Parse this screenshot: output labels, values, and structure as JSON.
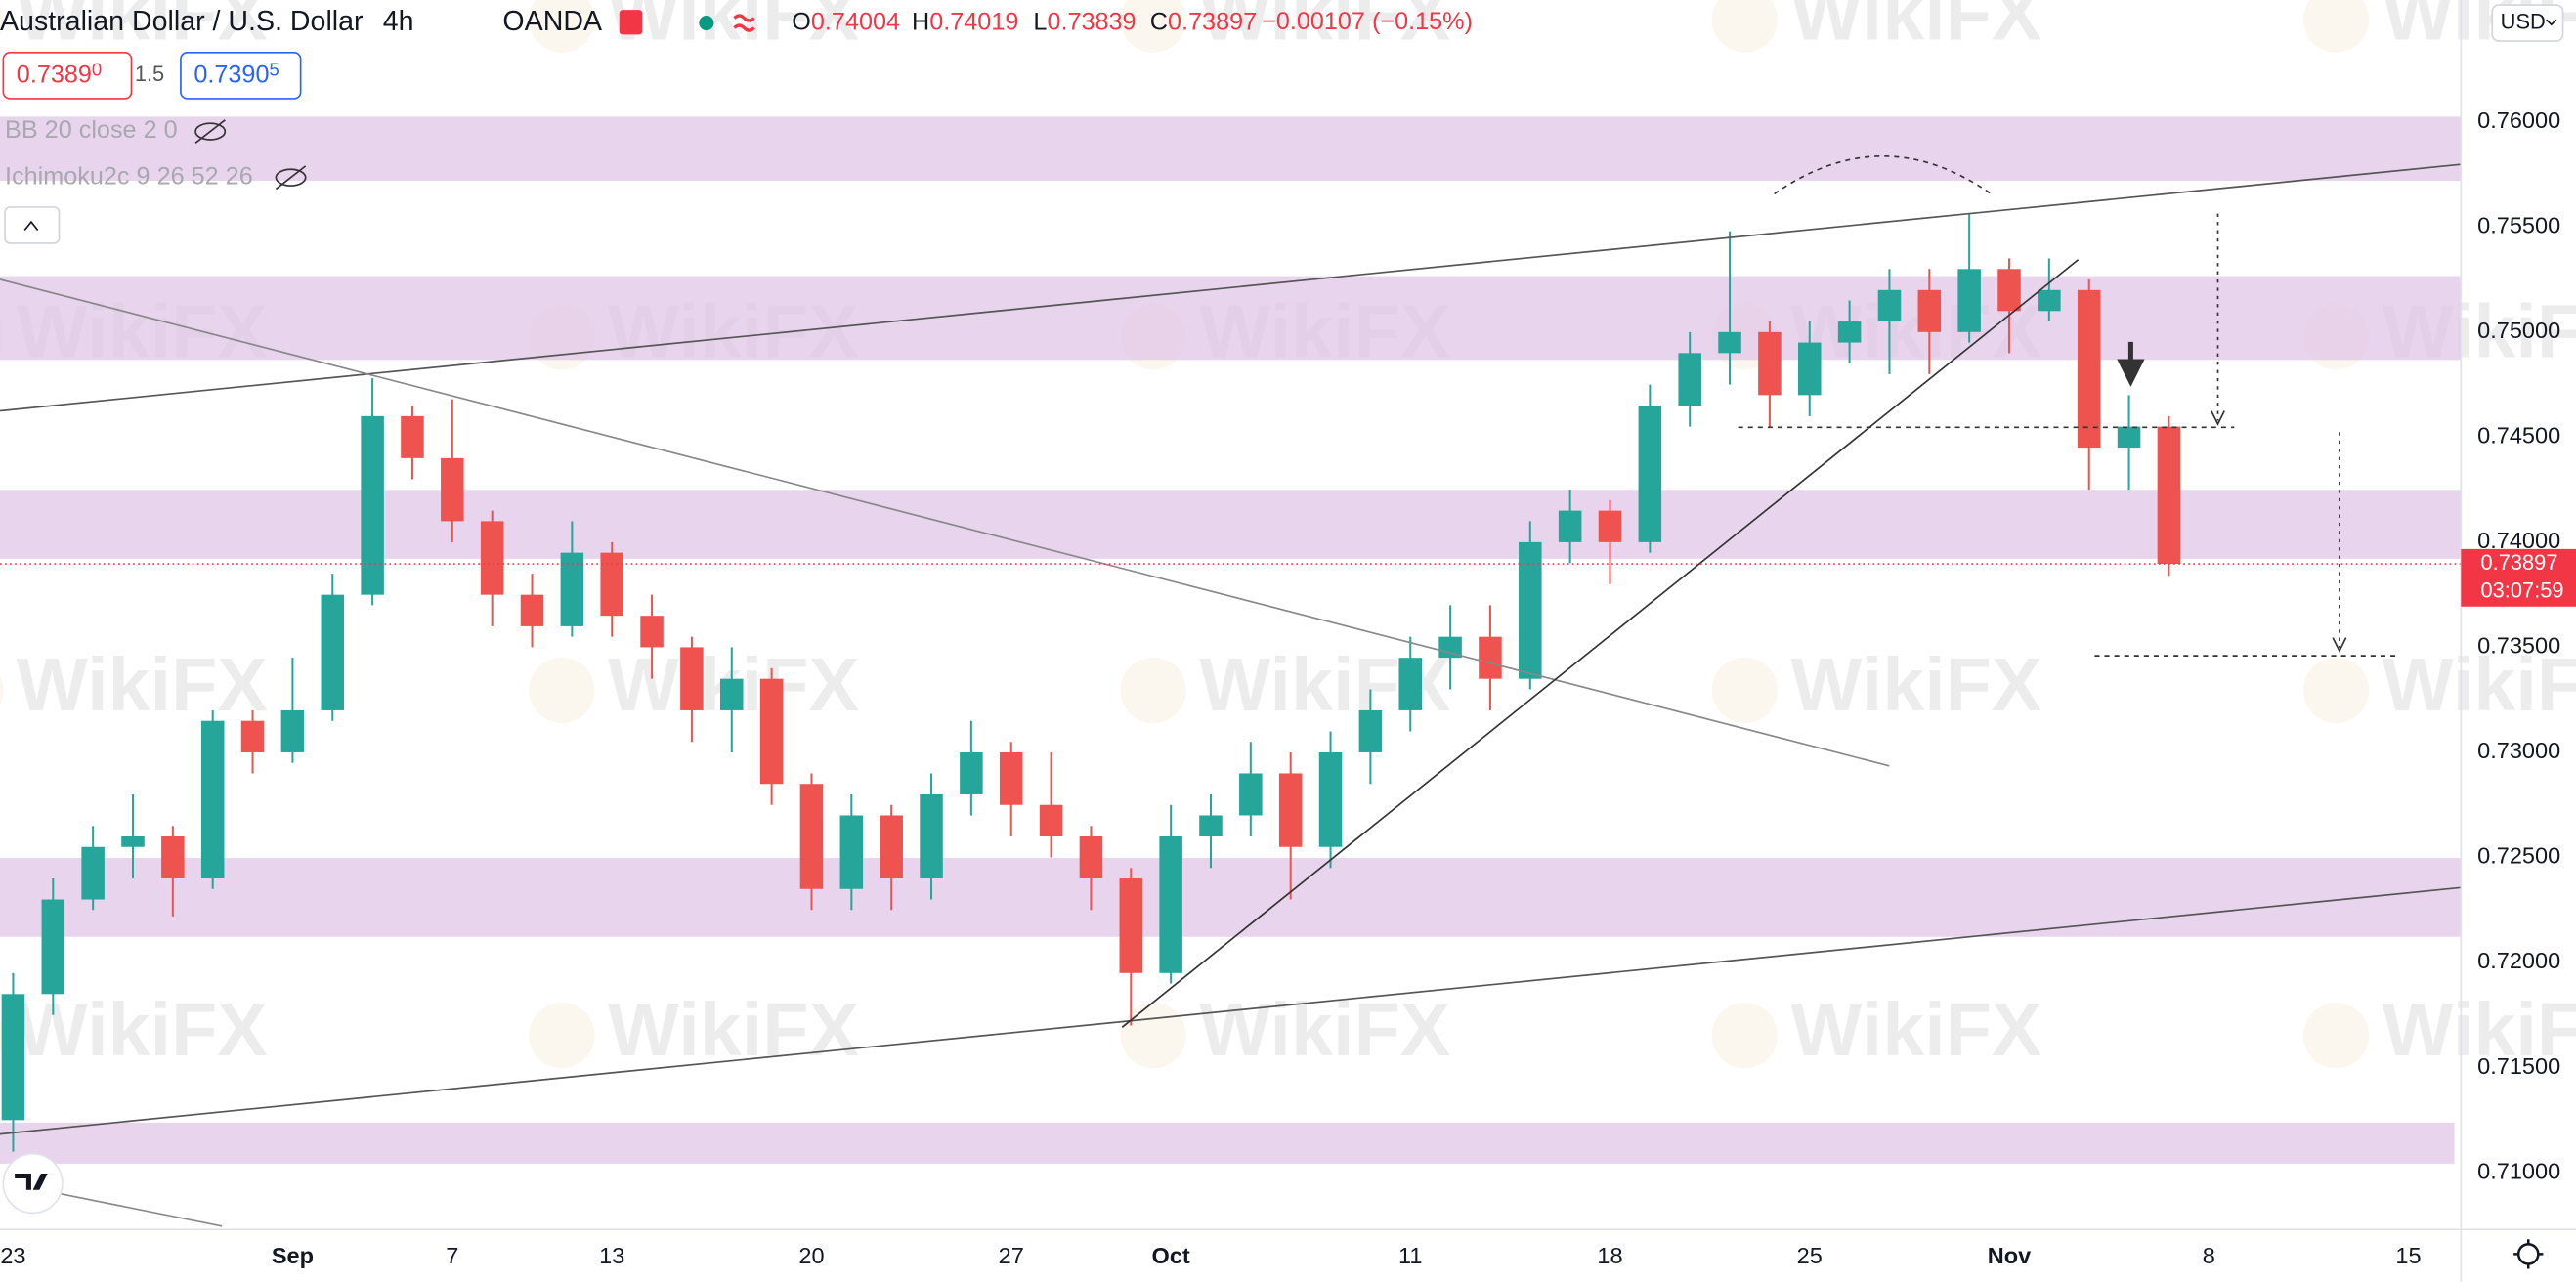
{
  "chart_data": {
    "type": "candlestick",
    "title": "Australian Dollar / U.S. Dollar",
    "interval": "4h",
    "exchange": "OANDA",
    "ohlc_header": [
      {
        "label": "O",
        "value": "0.74004"
      },
      {
        "label": "H",
        "value": "0.74019"
      },
      {
        "label": "L",
        "value": "0.73839"
      },
      {
        "label": "C",
        "value": "0.73897"
      }
    ],
    "change": "−0.00107 (−0.15%)",
    "sell_price": {
      "main": "0.7389",
      "pip": "0"
    },
    "spread": "1.5",
    "buy_price": {
      "main": "0.7390",
      "pip": "5"
    },
    "indicators": [
      "BB 20 close 2 0",
      "Ichimoku2c 9 26 52 26"
    ],
    "currency": "USD",
    "watermark": "WikiFX",
    "last_price": 0.73897,
    "countdown": "03:07:59",
    "categories": [
      "23",
      null,
      null,
      null,
      null,
      null,
      null,
      "Sep",
      null,
      null,
      null,
      "7",
      null,
      null,
      null,
      "13",
      null,
      null,
      null,
      null,
      "20",
      null,
      null,
      null,
      null,
      "27",
      null,
      null,
      null,
      "Oct",
      null,
      null,
      null,
      null,
      null,
      "11",
      null,
      null,
      null,
      null,
      "18",
      null,
      null,
      null,
      null,
      "25",
      null,
      null,
      null,
      null,
      "Nov",
      null,
      null,
      null,
      null,
      "8",
      null,
      null,
      null,
      null,
      "15"
    ],
    "open": [
      0.7125,
      0.7185,
      0.723,
      0.7255,
      0.726,
      0.724,
      0.7315,
      0.73,
      0.732,
      0.7375,
      0.746,
      0.744,
      0.741,
      0.7375,
      0.736,
      0.7395,
      0.7365,
      0.735,
      0.732,
      0.7335,
      0.7285,
      0.7235,
      0.727,
      0.724,
      0.728,
      0.73,
      0.7275,
      0.726,
      0.724,
      0.7195,
      0.726,
      0.727,
      0.729,
      0.7255,
      0.73,
      0.732,
      0.7345,
      0.7355,
      0.7335,
      0.74,
      0.7415,
      0.74,
      0.7465,
      0.749,
      0.75,
      0.747,
      0.7495,
      0.7505,
      0.752,
      0.75,
      0.753,
      0.751,
      0.752,
      0.7445,
      0.7455,
      null,
      null,
      null,
      null,
      null,
      null
    ],
    "high": [
      0.7195,
      0.724,
      0.7265,
      0.728,
      0.7265,
      0.732,
      0.732,
      0.7345,
      0.7385,
      0.7478,
      0.7465,
      0.7468,
      0.7415,
      0.7385,
      0.741,
      0.74,
      0.7375,
      0.7355,
      0.735,
      0.734,
      0.729,
      0.728,
      0.7275,
      0.729,
      0.7315,
      0.7305,
      0.73,
      0.7265,
      0.7245,
      0.7275,
      0.728,
      0.7305,
      0.73,
      0.731,
      0.733,
      0.7355,
      0.737,
      0.737,
      0.741,
      0.7425,
      0.742,
      0.7475,
      0.75,
      0.7548,
      0.7505,
      0.7505,
      0.7515,
      0.753,
      0.753,
      0.7556,
      0.7535,
      0.7535,
      0.7525,
      0.747,
      0.746,
      null,
      null,
      null,
      null,
      null,
      null
    ],
    "low": [
      0.711,
      0.7175,
      0.7225,
      0.724,
      0.7222,
      0.7235,
      0.729,
      0.7295,
      0.7315,
      0.737,
      0.743,
      0.74,
      0.736,
      0.735,
      0.7355,
      0.7355,
      0.7335,
      0.7305,
      0.73,
      0.7275,
      0.7225,
      0.7225,
      0.7225,
      0.723,
      0.727,
      0.726,
      0.725,
      0.7225,
      0.717,
      0.719,
      0.7245,
      0.726,
      0.723,
      0.7245,
      0.7285,
      0.731,
      0.733,
      0.732,
      0.733,
      0.739,
      0.738,
      0.7395,
      0.7455,
      0.7475,
      0.7455,
      0.746,
      0.7485,
      0.748,
      0.748,
      0.7495,
      0.749,
      0.7505,
      0.7425,
      0.7425,
      0.7384,
      null,
      null,
      null,
      null,
      null,
      null
    ],
    "close": [
      0.7185,
      0.723,
      0.7255,
      0.726,
      0.724,
      0.7315,
      0.73,
      0.732,
      0.7375,
      0.746,
      0.744,
      0.741,
      0.7375,
      0.736,
      0.7395,
      0.7365,
      0.735,
      0.732,
      0.7335,
      0.7285,
      0.7235,
      0.727,
      0.724,
      0.728,
      0.73,
      0.7275,
      0.726,
      0.724,
      0.7195,
      0.726,
      0.727,
      0.729,
      0.7255,
      0.73,
      0.732,
      0.7345,
      0.7355,
      0.7335,
      0.74,
      0.7415,
      0.74,
      0.7465,
      0.749,
      0.75,
      0.747,
      0.7495,
      0.7505,
      0.752,
      0.75,
      0.753,
      0.751,
      0.752,
      0.7445,
      0.7455,
      0.73897,
      null,
      null,
      null,
      null,
      null,
      null
    ],
    "up_color": "#26a69a",
    "down_color": "#ef5350",
    "ylim": [
      0.7073,
      0.7658
    ],
    "yticks": [
      {
        "value": 0.76,
        "label": "0.76000"
      },
      {
        "value": 0.755,
        "label": "0.75500"
      },
      {
        "value": 0.75,
        "label": "0.75000"
      },
      {
        "value": 0.745,
        "label": "0.74500"
      },
      {
        "value": 0.74,
        "label": "0.74000"
      },
      {
        "value": 0.735,
        "label": "0.73500"
      },
      {
        "value": 0.73,
        "label": "0.73000"
      },
      {
        "value": 0.725,
        "label": "0.72500"
      },
      {
        "value": 0.72,
        "label": "0.72000"
      },
      {
        "value": 0.715,
        "label": "0.71500"
      },
      {
        "value": 0.71,
        "label": "0.71000"
      }
    ],
    "grid": false
  }
}
